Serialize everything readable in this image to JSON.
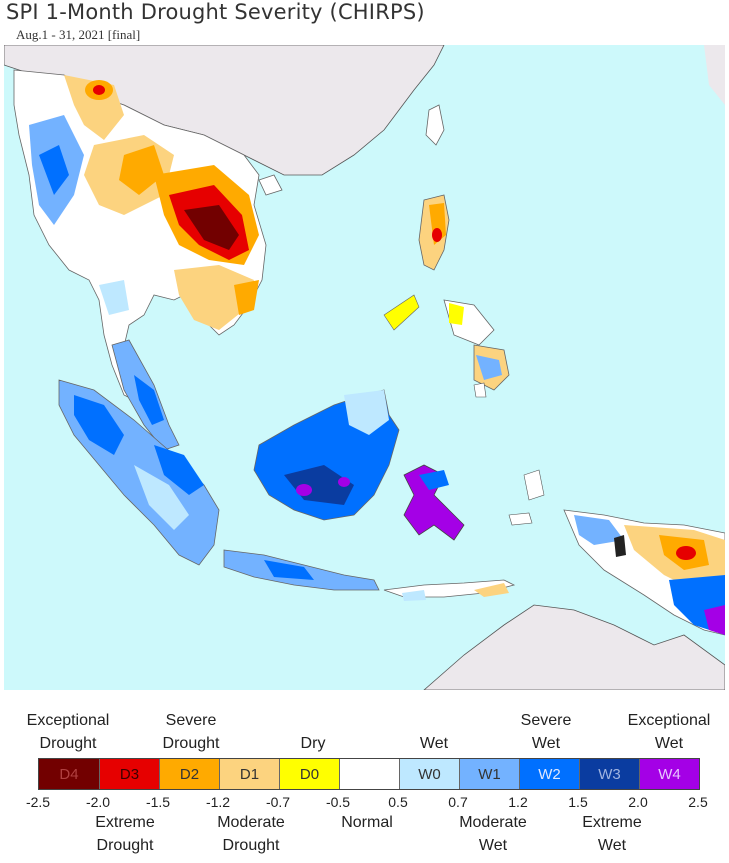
{
  "title": "SPI 1-Month Drought Severity (CHIRPS)",
  "subtitle": "Aug.1 - 31, 2021 [final]",
  "colors": {
    "ocean": "#cdf9fb",
    "land_outside": "#ece8ec",
    "border": "#777777"
  },
  "legend": {
    "categories": [
      {
        "code": "D4",
        "color": "#720000",
        "text_color": "#b04040"
      },
      {
        "code": "D3",
        "color": "#e60000",
        "text_color": "#3a0000"
      },
      {
        "code": "D2",
        "color": "#ffaa00",
        "text_color": "#333333"
      },
      {
        "code": "D1",
        "color": "#fcd37f",
        "text_color": "#333333"
      },
      {
        "code": "D0",
        "color": "#ffff00",
        "text_color": "#333333"
      },
      {
        "code": "",
        "color": "#ffffff",
        "text_color": "#333333"
      },
      {
        "code": "W0",
        "color": "#bee8ff",
        "text_color": "#333333"
      },
      {
        "code": "W1",
        "color": "#73b2ff",
        "text_color": "#333333"
      },
      {
        "code": "W2",
        "color": "#0070ff",
        "text_color": "#e0e8ff"
      },
      {
        "code": "W3",
        "color": "#0a3ca0",
        "text_color": "#a0b4e0"
      },
      {
        "code": "W4",
        "color": "#a400e6",
        "text_color": "#e8c8ff"
      }
    ],
    "ticks": [
      "-2.5",
      "-2.0",
      "-1.5",
      "-1.2",
      "-0.7",
      "-0.5",
      "0.5",
      "0.7",
      "1.2",
      "1.5",
      "2.0",
      "2.5"
    ],
    "top_labels": [
      {
        "line1": "Exceptional",
        "line2": "Drought"
      },
      {
        "line1": "Severe",
        "line2": "Drought"
      },
      {
        "line1": "",
        "line2": "Dry"
      },
      {
        "line1": "",
        "line2": "Wet"
      },
      {
        "line1": "Severe",
        "line2": "Wet"
      },
      {
        "line1": "Exceptional",
        "line2": "Wet"
      }
    ],
    "bottom_labels": [
      {
        "line1": "Extreme",
        "line2": "Drought"
      },
      {
        "line1": "Moderate",
        "line2": "Drought"
      },
      {
        "line1": "Normal",
        "line2": ""
      },
      {
        "line1": "Moderate",
        "line2": "Wet"
      },
      {
        "line1": "Extreme",
        "line2": "Wet"
      }
    ]
  }
}
